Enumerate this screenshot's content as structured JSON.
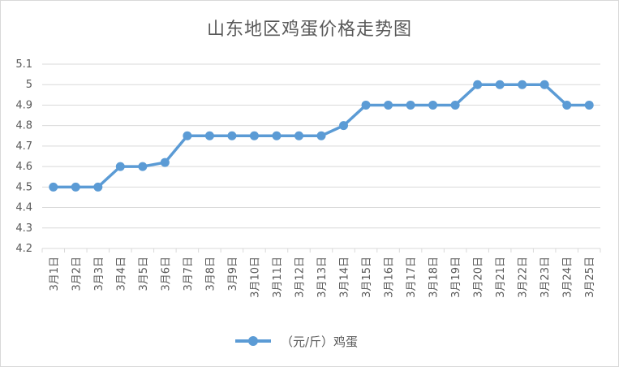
{
  "chart_data": {
    "type": "line",
    "title": "山东地区鸡蛋价格走势图",
    "categories": [
      "3月1日",
      "3月2日",
      "3月3日",
      "3月4日",
      "3月5日",
      "3月6日",
      "3月7日",
      "3月8日",
      "3月9日",
      "3月10日",
      "3月11日",
      "3月12日",
      "3月13日",
      "3月14日",
      "3月15日",
      "3月16日",
      "3月17日",
      "3月18日",
      "3月19日",
      "3月20日",
      "3月21日",
      "3月22日",
      "3月23日",
      "3月24日",
      "3月25日"
    ],
    "series": [
      {
        "name": "（元/斤）鸡蛋",
        "color": "#5b9bd5",
        "values": [
          4.5,
          4.5,
          4.5,
          4.6,
          4.6,
          4.62,
          4.75,
          4.75,
          4.75,
          4.75,
          4.75,
          4.75,
          4.75,
          4.8,
          4.9,
          4.9,
          4.9,
          4.9,
          4.9,
          5.0,
          5.0,
          5.0,
          5.0,
          4.9,
          4.9
        ]
      }
    ],
    "ylim": [
      4.2,
      5.1
    ],
    "yticks": [
      "4.2",
      "4.3",
      "4.4",
      "4.5",
      "4.6",
      "4.7",
      "4.8",
      "4.9",
      "5",
      "5.1"
    ],
    "grid": true,
    "legend": "bottom"
  }
}
